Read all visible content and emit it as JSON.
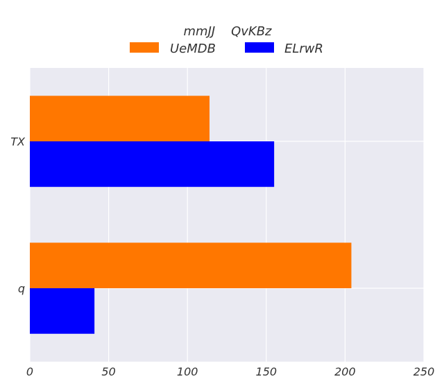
{
  "chart_data": {
    "type": "bar",
    "orientation": "horizontal",
    "categories": [
      "TX",
      "q"
    ],
    "series": [
      {
        "name": "UeMDB",
        "values": [
          114,
          204
        ],
        "color": "#ff7700"
      },
      {
        "name": "ELrwR",
        "values": [
          155,
          41
        ],
        "color": "#0000ff"
      }
    ],
    "legend": {
      "title": "mmJJ    QvKBz",
      "placement": "top-center",
      "columns": 2
    },
    "xlim": [
      0,
      250
    ],
    "xticks": [
      "0",
      "50",
      "100",
      "150",
      "200",
      "250"
    ],
    "grid": true,
    "background": "#eaeaf2"
  }
}
